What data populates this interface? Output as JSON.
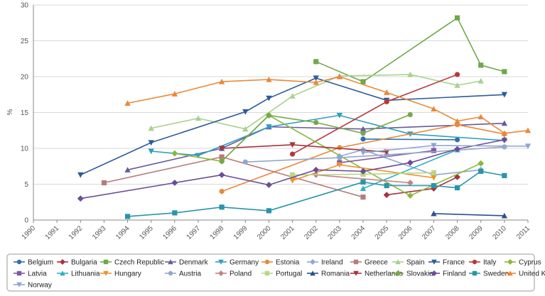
{
  "chart_data": {
    "type": "line",
    "title": "",
    "xlabel": "",
    "ylabel": "%",
    "xlim": [
      1990,
      2011
    ],
    "ylim": [
      0,
      30
    ],
    "x_ticks": [
      "1990",
      "1991",
      "1992",
      "1993",
      "1994",
      "1995",
      "1996",
      "1997",
      "1998",
      "1999",
      "2000",
      "2001",
      "2002",
      "2003",
      "2004",
      "2005",
      "2006",
      "2007",
      "2008",
      "2009",
      "2010",
      "2011"
    ],
    "y_ticks": [
      "0",
      "5",
      "10",
      "15",
      "20",
      "25",
      "30"
    ],
    "grid": "horizontal",
    "legend_position": "bottom",
    "series": [
      {
        "name": "Belgium",
        "color": "#2f6fae",
        "marker": "circle",
        "points": [
          [
            2004,
            11.3
          ],
          [
            2008,
            11.2
          ]
        ]
      },
      {
        "name": "Bulgaria",
        "color": "#a8323e",
        "marker": "diamond",
        "points": [
          [
            2005,
            3.5
          ],
          [
            2007,
            4.4
          ],
          [
            2008,
            6.0
          ]
        ]
      },
      {
        "name": "Czech Republic",
        "color": "#6fa84a",
        "marker": "square",
        "points": [
          [
            2002,
            22.1
          ],
          [
            2004,
            19.3
          ],
          [
            2008,
            28.2
          ],
          [
            2009,
            21.6
          ],
          [
            2010,
            20.7
          ]
        ]
      },
      {
        "name": "Denmark",
        "color": "#6b5a9c",
        "marker": "triangle-up",
        "points": [
          [
            1994,
            7.0
          ],
          [
            1998,
            10.0
          ],
          [
            2000,
            13.0
          ],
          [
            2004,
            12.7
          ],
          [
            2010,
            13.5
          ]
        ]
      },
      {
        "name": "Germany",
        "color": "#2e9fbf",
        "marker": "triangle-down",
        "points": [
          [
            1995,
            9.6
          ],
          [
            1997,
            9.0
          ],
          [
            2000,
            13.0
          ],
          [
            2003,
            14.6
          ],
          [
            2006,
            12.0
          ],
          [
            2010,
            11.1
          ]
        ]
      },
      {
        "name": "Estonia",
        "color": "#e8893a",
        "marker": "circle",
        "points": [
          [
            1998,
            4.0
          ],
          [
            2003,
            10.1
          ],
          [
            2008,
            13.3
          ],
          [
            2010,
            12.0
          ]
        ]
      },
      {
        "name": "Ireland",
        "color": "#8ea8d6",
        "marker": "diamond",
        "points": [
          [
            2003,
            8.9
          ],
          [
            2004,
            9.8
          ],
          [
            2007,
            6.3
          ],
          [
            2009,
            7.0
          ]
        ]
      },
      {
        "name": "Greece",
        "color": "#b97a7a",
        "marker": "square",
        "points": [
          [
            1993,
            5.2
          ],
          [
            1998,
            8.8
          ],
          [
            2004,
            3.2
          ]
        ]
      },
      {
        "name": "Spain",
        "color": "#a9d18e",
        "marker": "triangle-up",
        "points": [
          [
            1995,
            12.8
          ],
          [
            1997,
            14.2
          ],
          [
            1999,
            12.7
          ],
          [
            2001,
            17.3
          ],
          [
            2003,
            20.1
          ],
          [
            2006,
            20.3
          ],
          [
            2008,
            18.8
          ],
          [
            2009,
            19.4
          ]
        ]
      },
      {
        "name": "France",
        "color": "#2d5b9a",
        "marker": "triangle-down",
        "points": [
          [
            1992,
            6.3
          ],
          [
            1995,
            10.8
          ],
          [
            1999,
            15.1
          ],
          [
            2000,
            17.0
          ],
          [
            2002,
            19.8
          ],
          [
            2005,
            16.7
          ],
          [
            2010,
            17.5
          ]
        ]
      },
      {
        "name": "Italy",
        "color": "#b8383a",
        "marker": "circle",
        "points": [
          [
            2001,
            9.2
          ],
          [
            2005,
            16.5
          ],
          [
            2008,
            20.3
          ]
        ]
      },
      {
        "name": "Cyprus",
        "color": "#8ab83c",
        "marker": "diamond",
        "points": [
          [
            1996,
            9.3
          ],
          [
            1998,
            8.2
          ],
          [
            2000,
            14.6
          ],
          [
            2006,
            3.4
          ],
          [
            2009,
            7.9
          ]
        ]
      },
      {
        "name": "Latvia",
        "color": "#7f5aa2",
        "marker": "square",
        "points": [
          [
            2003,
            8.0
          ],
          [
            2007,
            9.7
          ]
        ]
      },
      {
        "name": "Lithuania",
        "color": "#2fb0c4",
        "marker": "triangle-up",
        "points": [
          [
            2004,
            4.4
          ],
          [
            2008,
            9.8
          ]
        ]
      },
      {
        "name": "Hungary",
        "color": "#f0922d",
        "marker": "triangle-down",
        "points": [
          [
            2001,
            5.5
          ],
          [
            2003,
            7.7
          ],
          [
            2007,
            5.9
          ]
        ]
      },
      {
        "name": "Austria",
        "color": "#94a7c9",
        "marker": "circle",
        "points": [
          [
            1999,
            8.1
          ],
          [
            2003,
            8.7
          ],
          [
            2005,
            9.1
          ],
          [
            2010,
            10.2
          ]
        ]
      },
      {
        "name": "Poland",
        "color": "#c38383",
        "marker": "diamond",
        "points": [
          [
            2002,
            6.3
          ],
          [
            2006,
            5.2
          ]
        ]
      },
      {
        "name": "Portugal",
        "color": "#b9d68b",
        "marker": "square",
        "points": [
          [
            2001,
            6.3
          ],
          [
            2004,
            6.4
          ],
          [
            2007,
            6.6
          ]
        ]
      },
      {
        "name": "Romania",
        "color": "#2c4f8c",
        "marker": "triangle-up",
        "points": [
          [
            2007,
            0.9
          ],
          [
            2010,
            0.6
          ]
        ]
      },
      {
        "name": "Netherlands",
        "color": "#a8323e",
        "marker": "triangle-down",
        "points": [
          [
            1998,
            10.0
          ],
          [
            2001,
            10.5
          ],
          [
            2005,
            9.5
          ]
        ]
      },
      {
        "name": "Slovakia",
        "color": "#77a849",
        "marker": "circle",
        "points": [
          [
            1998,
            8.2
          ],
          [
            2000,
            14.6
          ],
          [
            2002,
            13.6
          ],
          [
            2004,
            12.1
          ],
          [
            2006,
            14.7
          ]
        ]
      },
      {
        "name": "Finland",
        "color": "#6b4c98",
        "marker": "diamond",
        "points": [
          [
            1992,
            3.0
          ],
          [
            1996,
            5.2
          ],
          [
            1998,
            6.3
          ],
          [
            2000,
            4.9
          ],
          [
            2002,
            7.0
          ],
          [
            2004,
            6.8
          ],
          [
            2006,
            8.0
          ],
          [
            2008,
            9.9
          ],
          [
            2010,
            11.2
          ]
        ]
      },
      {
        "name": "Sweden",
        "color": "#2a95a8",
        "marker": "square",
        "points": [
          [
            1994,
            0.5
          ],
          [
            1996,
            1.0
          ],
          [
            1998,
            1.8
          ],
          [
            2000,
            1.3
          ],
          [
            2004,
            5.3
          ],
          [
            2005,
            4.8
          ],
          [
            2007,
            4.8
          ],
          [
            2008,
            4.5
          ],
          [
            2009,
            6.8
          ],
          [
            2010,
            6.2
          ]
        ]
      },
      {
        "name": "United Kingdom (E&W)",
        "color": "#e8893a",
        "marker": "triangle-up",
        "points": [
          [
            1994,
            16.3
          ],
          [
            1996,
            17.6
          ],
          [
            1998,
            19.3
          ],
          [
            2000,
            19.6
          ],
          [
            2002,
            19.2
          ],
          [
            2003,
            20.0
          ],
          [
            2005,
            17.8
          ],
          [
            2007,
            15.5
          ],
          [
            2008,
            13.8
          ],
          [
            2009,
            14.4
          ],
          [
            2010,
            12.1
          ],
          [
            2011,
            12.5
          ]
        ]
      },
      {
        "name": "Norway",
        "color": "#8fa6d1",
        "marker": "triangle-down",
        "points": [
          [
            2004,
            9.4
          ],
          [
            2007,
            10.4
          ],
          [
            2011,
            10.3
          ]
        ]
      }
    ]
  }
}
